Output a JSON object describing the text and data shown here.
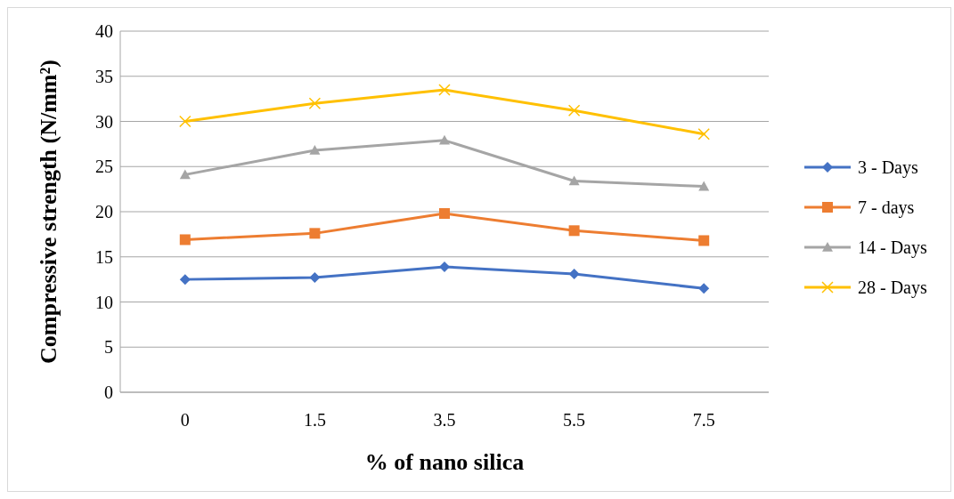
{
  "chart_data": {
    "type": "line",
    "xlabel": "% of nano silica",
    "ylabel": "Compressive strength (N/mm²)",
    "categories": [
      "0",
      "1.5",
      "3.5",
      "5.5",
      "7.5"
    ],
    "ylim": [
      0,
      40
    ],
    "yticks": [
      0,
      5,
      10,
      15,
      20,
      25,
      30,
      35,
      40
    ],
    "grid": "y",
    "legend": "right",
    "line_style": "solid",
    "series": [
      {
        "name": "3 - Days",
        "color": "#4472c4",
        "marker": "diamond",
        "values": [
          12.5,
          12.7,
          13.9,
          13.1,
          11.5
        ]
      },
      {
        "name": "7 - days",
        "color": "#ed7d31",
        "marker": "square",
        "values": [
          16.9,
          17.6,
          19.8,
          17.9,
          16.8
        ]
      },
      {
        "name": "14 - Days",
        "color": "#a5a5a5",
        "marker": "triangle",
        "values": [
          24.1,
          26.8,
          27.9,
          23.4,
          22.8
        ]
      },
      {
        "name": "28 - Days",
        "color": "#ffc000",
        "marker": "cross",
        "values": [
          30.0,
          32.0,
          33.5,
          31.2,
          28.6
        ]
      }
    ]
  }
}
